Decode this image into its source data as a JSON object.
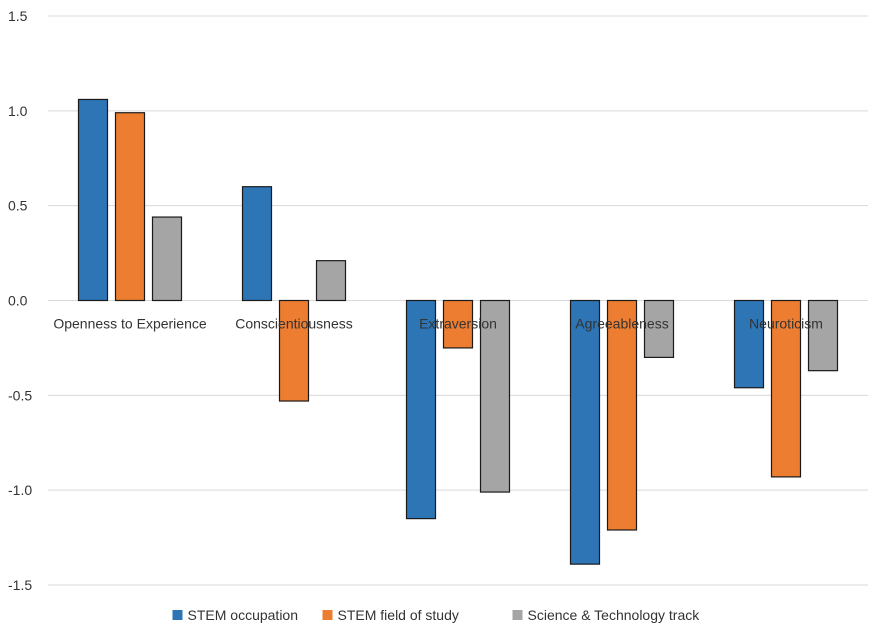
{
  "chart_data": {
    "type": "bar",
    "categories": [
      "Openness to Experience",
      "Conscientiousness",
      "Extraversion",
      "Agreeableness",
      "Neuroticism"
    ],
    "series": [
      {
        "name": "STEM occupation",
        "color": "#2E75B6",
        "values": [
          1.06,
          0.6,
          -1.15,
          -1.39,
          -0.46
        ]
      },
      {
        "name": "STEM field of study",
        "color": "#ED7D31",
        "values": [
          0.99,
          -0.53,
          -0.25,
          -1.21,
          -0.93
        ]
      },
      {
        "name": "Science & Technology track",
        "color": "#A5A5A5",
        "values": [
          0.44,
          0.21,
          -1.01,
          -0.3,
          -0.37
        ]
      }
    ],
    "ylim": [
      -1.5,
      1.5
    ],
    "yticks": [
      "1.5",
      "1.0",
      "0.5",
      "0.0",
      "-0.5",
      "-1.0",
      "-1.5"
    ],
    "ytick_values": [
      1.5,
      1.0,
      0.5,
      0.0,
      -0.5,
      -1.0,
      -1.5
    ],
    "grid": true,
    "legend_position": "bottom",
    "title": "",
    "xlabel": "",
    "ylabel": ""
  }
}
